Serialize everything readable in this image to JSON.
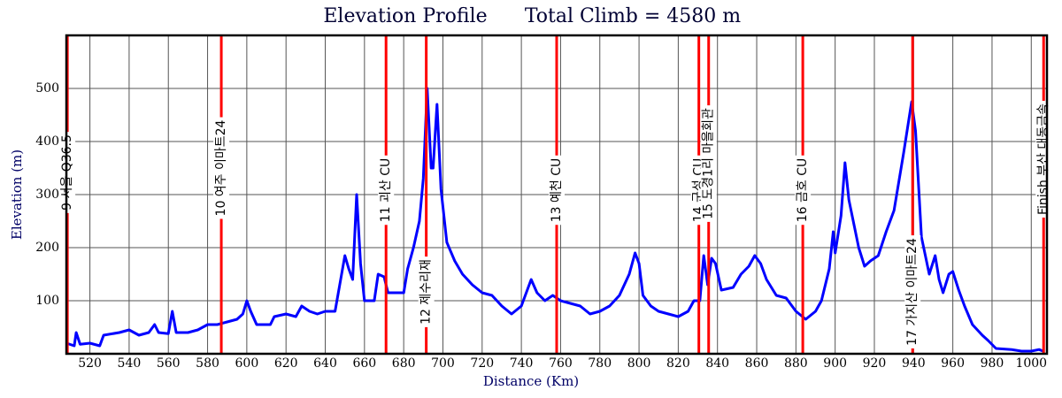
{
  "chart_data": {
    "type": "line",
    "title": "Elevation Profile",
    "subtitle": "Total Climb = 4580 m",
    "x_label": "Distance (Km)",
    "y_label": "Elevation (m)",
    "xlim": [
      508,
      1008
    ],
    "ylim": [
      0,
      600
    ],
    "xticks": [
      520,
      540,
      560,
      580,
      600,
      620,
      640,
      660,
      680,
      700,
      720,
      740,
      760,
      780,
      800,
      820,
      840,
      860,
      880,
      900,
      920,
      940,
      960,
      980,
      1000
    ],
    "yticks": [
      100,
      200,
      300,
      400,
      500
    ],
    "grid": true,
    "series": [
      {
        "name": "Elevation",
        "color": "#0000ff",
        "x": [
          508,
          512,
          513,
          515,
          520,
          525,
          527,
          535,
          540,
          545,
          550,
          553,
          555,
          560,
          562,
          564,
          570,
          575,
          580,
          585,
          590,
          595,
          598,
          600,
          602,
          605,
          612,
          614,
          620,
          625,
          628,
          632,
          636,
          640,
          645,
          650,
          652,
          654,
          656,
          658,
          660,
          665,
          667,
          670,
          672,
          680,
          682,
          685,
          688,
          690,
          692,
          694,
          695,
          697,
          699,
          702,
          706,
          710,
          715,
          720,
          725,
          730,
          735,
          740,
          745,
          748,
          752,
          756,
          760,
          765,
          770,
          775,
          780,
          785,
          790,
          795,
          798,
          800,
          802,
          806,
          810,
          815,
          820,
          825,
          828,
          831,
          833,
          835,
          837,
          839,
          842,
          848,
          852,
          856,
          859,
          862,
          865,
          870,
          875,
          880,
          885,
          890,
          893,
          897,
          899,
          900,
          903,
          905,
          907,
          912,
          915,
          918,
          922,
          926,
          930,
          935,
          939,
          941,
          944,
          948,
          951,
          953,
          955,
          958,
          960,
          963,
          966,
          970,
          975,
          978,
          982,
          990,
          995,
          1000,
          1004,
          1006
        ],
        "values": [
          20,
          15,
          40,
          18,
          20,
          15,
          35,
          40,
          45,
          35,
          40,
          55,
          40,
          38,
          80,
          40,
          40,
          45,
          55,
          55,
          60,
          65,
          75,
          100,
          80,
          55,
          55,
          70,
          75,
          70,
          90,
          80,
          75,
          80,
          80,
          185,
          160,
          140,
          300,
          170,
          100,
          100,
          150,
          145,
          115,
          115,
          160,
          200,
          250,
          330,
          500,
          350,
          350,
          470,
          310,
          210,
          175,
          150,
          130,
          115,
          110,
          90,
          75,
          90,
          140,
          115,
          100,
          110,
          100,
          95,
          90,
          75,
          80,
          90,
          110,
          150,
          190,
          170,
          110,
          90,
          80,
          75,
          70,
          80,
          100,
          100,
          185,
          130,
          180,
          170,
          120,
          125,
          150,
          165,
          185,
          170,
          140,
          110,
          105,
          80,
          65,
          80,
          100,
          160,
          230,
          190,
          260,
          360,
          290,
          200,
          165,
          175,
          185,
          230,
          270,
          380,
          475,
          420,
          220,
          150,
          185,
          140,
          115,
          150,
          155,
          120,
          90,
          55,
          35,
          25,
          10,
          8,
          5,
          5,
          8,
          5
        ]
      }
    ],
    "markers": [
      {
        "x": 508.5,
        "label": "9 서울 Q36.5"
      },
      {
        "x": 587,
        "label": "10 여주 이마트24"
      },
      {
        "x": 671,
        "label": "11 괴산 CU"
      },
      {
        "x": 691.5,
        "label": "12 제수리재"
      },
      {
        "x": 758,
        "label": "13 예천 CU"
      },
      {
        "x": 830.5,
        "label": "14 군성 CU"
      },
      {
        "x": 835.5,
        "label": "15 도경1리 마을회관"
      },
      {
        "x": 883.5,
        "label": "16 금호 CU"
      },
      {
        "x": 939.5,
        "label": "17 가지산 이마트24"
      },
      {
        "x": 1006.3,
        "label": "Finish 부산 대동금속"
      }
    ],
    "marker_color": "#ff0000"
  }
}
